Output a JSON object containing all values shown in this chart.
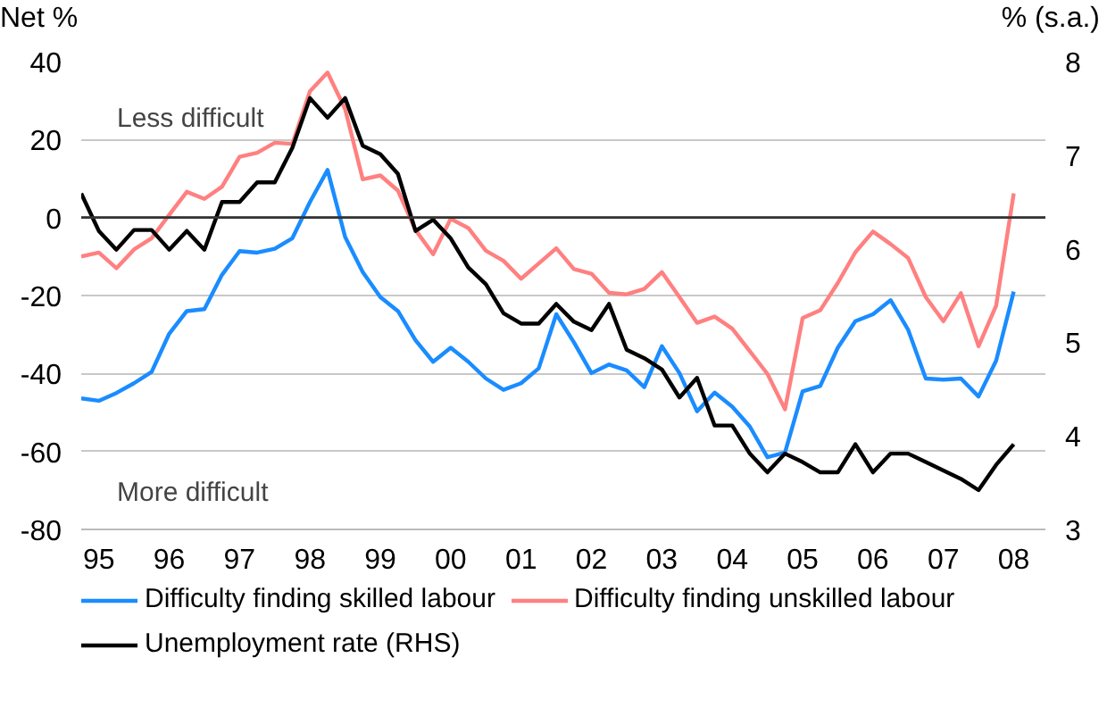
{
  "chart_data": {
    "type": "line",
    "xlabel": null,
    "ylabel": "Net %",
    "y2label": "% (s.a.)",
    "x": [
      1994.75,
      1995.0,
      1995.25,
      1995.5,
      1995.75,
      1996.0,
      1996.25,
      1996.5,
      1996.75,
      1997.0,
      1997.25,
      1997.5,
      1997.75,
      1998.0,
      1998.25,
      1998.5,
      1998.75,
      1999.0,
      1999.25,
      1999.5,
      1999.75,
      2000.0,
      2000.25,
      2000.5,
      2000.75,
      2001.0,
      2001.25,
      2001.5,
      2001.75,
      2002.0,
      2002.25,
      2002.5,
      2002.75,
      2003.0,
      2003.25,
      2003.5,
      2003.75,
      2004.0,
      2004.25,
      2004.5,
      2004.75,
      2005.0,
      2005.25,
      2005.5,
      2005.75,
      2006.0,
      2006.25,
      2006.5,
      2006.75,
      2007.0,
      2007.25,
      2007.5,
      2007.75,
      2008.0
    ],
    "series": [
      {
        "name": "Difficulty finding skilled labour",
        "color": "#1a8cff",
        "values": [
          -46.4,
          -47,
          -45,
          -42.5,
          -39.6,
          -29.8,
          -24,
          -23.5,
          -14.7,
          -8.6,
          -9,
          -8,
          -5.3,
          4,
          12.2,
          -5,
          -14,
          -20.4,
          -24,
          -31.5,
          -37,
          -33.4,
          -37,
          -41.3,
          -44.2,
          -42.5,
          -38.7,
          -24.8,
          -32,
          -39.9,
          -37.7,
          -39.2,
          -43.5,
          -33,
          -39.9,
          -49.7,
          -44.9,
          -48.5,
          -53.6,
          -61.5,
          -60.3,
          -44.6,
          -43.2,
          -33.4,
          -26.6,
          -24.8,
          -21.2,
          -28.8,
          -41.3,
          -41.6,
          -41.3,
          -45.9,
          -36.7,
          -19
        ]
      },
      {
        "name": "Difficulty finding unskilled labour",
        "color": "#ff8080",
        "values": [
          -10,
          -9,
          -13,
          -8.2,
          -5.3,
          0.7,
          6.6,
          4.8,
          7.9,
          15.6,
          16.6,
          19.2,
          18.9,
          32.4,
          37.2,
          27.8,
          9.8,
          10.8,
          6.9,
          -3.2,
          -9.4,
          -0.3,
          -2.7,
          -8.5,
          -11.1,
          -15.7,
          -11.8,
          -7.9,
          -13.2,
          -14.4,
          -19.3,
          -19.7,
          -18.3,
          -14,
          -20.4,
          -27,
          -25.4,
          -28.5,
          -34.3,
          -40.1,
          -49.2,
          -25.8,
          -23.8,
          -16.8,
          -8.9,
          -3.6,
          -6.8,
          -10.4,
          -20.4,
          -26.6,
          -19.4,
          -33,
          -22.6,
          6.2
        ]
      },
      {
        "name": "Unemployment rate (RHS)",
        "color": "#000000",
        "axis": "y2",
        "values": [
          6.59,
          6.19,
          5.99,
          6.2,
          6.2,
          5.99,
          6.19,
          5.99,
          6.5,
          6.5,
          6.71,
          6.71,
          7.08,
          7.61,
          7.4,
          7.61,
          7.1,
          7.01,
          6.8,
          6.19,
          6.31,
          6.11,
          5.8,
          5.62,
          5.31,
          5.2,
          5.2,
          5.41,
          5.22,
          5.13,
          5.41,
          4.92,
          4.83,
          4.71,
          4.41,
          4.62,
          4.11,
          4.11,
          3.81,
          3.61,
          3.81,
          3.72,
          3.61,
          3.61,
          3.91,
          3.61,
          3.81,
          3.81,
          3.72,
          3.63,
          3.54,
          3.42,
          3.69,
          3.91
        ]
      }
    ],
    "xlim": [
      1994.75,
      2008.45
    ],
    "xticks": [
      {
        "value": 1995,
        "label": "95"
      },
      {
        "value": 1996,
        "label": "96"
      },
      {
        "value": 1997,
        "label": "97"
      },
      {
        "value": 1998,
        "label": "98"
      },
      {
        "value": 1999,
        "label": "99"
      },
      {
        "value": 2000,
        "label": "00"
      },
      {
        "value": 2001,
        "label": "01"
      },
      {
        "value": 2002,
        "label": "02"
      },
      {
        "value": 2003,
        "label": "03"
      },
      {
        "value": 2004,
        "label": "04"
      },
      {
        "value": 2005,
        "label": "05"
      },
      {
        "value": 2006,
        "label": "06"
      },
      {
        "value": 2007,
        "label": "07"
      },
      {
        "value": 2008,
        "label": "08"
      }
    ],
    "ylim": [
      -80,
      40
    ],
    "yticks": [
      -80,
      -60,
      -40,
      -20,
      0,
      20,
      40
    ],
    "y2lim": [
      3,
      8
    ],
    "y2ticks": [
      3,
      4,
      5,
      6,
      7,
      8
    ],
    "ref_lines": [
      {
        "axis": "y",
        "value": 0,
        "label": null,
        "color": "#333333"
      }
    ],
    "annotations": [
      "Less difficult",
      "More difficult"
    ],
    "grid": "y",
    "legend": "bottom",
    "marker": "none",
    "line_style": "solid"
  }
}
